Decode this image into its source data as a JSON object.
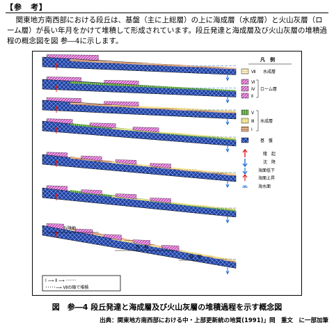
{
  "header": {
    "title": "【参　考】"
  },
  "body": {
    "paragraph": "関東地方南西部における段丘は、基盤（主に上総層）の上に海成層（水成層）と火山灰層（ローム層）が長い年月をかけて堆積して形成されています。段丘発達と海成層及び火山灰層の堆積過程の概念図を図 参―4に示します。"
  },
  "figure": {
    "caption": "図　参―4  段丘発達と海成層及び火山灰層の堆積過程を示す概念図",
    "source": "出典：関東地方南西部における中・上部更新統の地質(1991)」岡　重文　に一部加筆",
    "labels": {
      "kyuryo": "丘陵地",
      "daichi": "台　地",
      "teichi": "低　地"
    },
    "note": {
      "line1": "Ⅰ ⟶ Ⅱ ⟶ ･････",
      "line2": "･････⟶ Ⅶの順で堆積"
    },
    "legend": {
      "title": "凡　例",
      "entries": {
        "VII": "Ⅶ",
        "suisei_top": "水成層",
        "VI": "Ⅵ",
        "IV": "Ⅳ",
        "II": "Ⅱ",
        "loam": "ローム層",
        "V": "Ⅴ",
        "III": "Ⅲ",
        "I": "Ⅰ",
        "suisei": "水成層",
        "kiban": "基　盤",
        "ryuki": "隆　起",
        "chinko": "沈　降",
        "kaimen_teika": "海面低下",
        "kaimen_josho": "海面上昇",
        "kaisuimen": "海水面"
      }
    },
    "colors": {
      "basement": "#1f3f9a",
      "loam": "#d63cc8",
      "marine_brown": "#c0764a",
      "marine_green": "#3f8a2a",
      "marine_yellow": "#e6d64a",
      "water_blue": "#7fb6e6",
      "uplift_red": "#d81e1e",
      "subside_blue": "#1e6ed8"
    }
  }
}
